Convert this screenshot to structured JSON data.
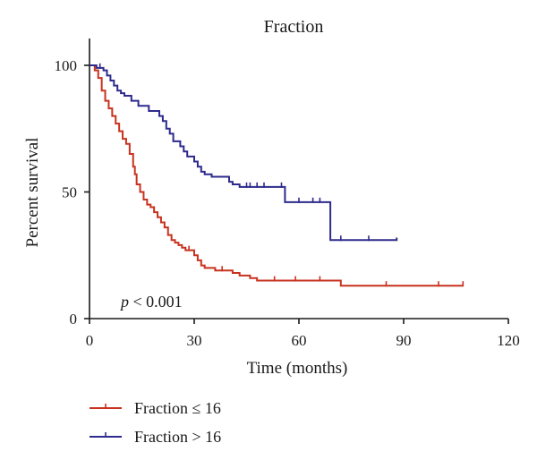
{
  "chart_data": {
    "type": "line",
    "title": "Fraction",
    "xlabel": "Time (months)",
    "ylabel": "Percent survival",
    "xlim": [
      0,
      120
    ],
    "ylim": [
      0,
      100
    ],
    "x_ticks": [
      "0",
      "30",
      "60",
      "90",
      "120"
    ],
    "y_ticks": [
      "0",
      "50",
      "100"
    ],
    "grid": false,
    "legend_position": "bottom-left",
    "annotation": {
      "p": "p",
      "rest": " < 0.001"
    },
    "series": [
      {
        "name": "Fraction ≤ 16",
        "color": "#c8321e",
        "step": true,
        "x": [
          0,
          1.5,
          2.5,
          3.5,
          4.5,
          5.5,
          6.5,
          7.5,
          8.5,
          9.5,
          10.5,
          11.5,
          12.5,
          13,
          13.5,
          14.5,
          15.5,
          16.5,
          17.5,
          18.5,
          19.5,
          20.5,
          21.5,
          22.5,
          23.5,
          24.5,
          25.5,
          26.5,
          27.5,
          28.5,
          30,
          31,
          32,
          33,
          36,
          38,
          41,
          43,
          46,
          48,
          53,
          59,
          66,
          72,
          85,
          100,
          107
        ],
        "y": [
          100,
          98,
          95,
          90,
          86,
          83,
          80,
          77,
          74,
          71,
          69,
          65,
          60,
          57,
          53,
          50,
          47,
          45,
          44,
          42,
          40,
          38,
          36,
          33,
          31,
          30,
          29,
          28,
          27,
          27,
          25,
          23,
          21,
          20,
          19,
          19,
          18,
          17,
          16,
          15,
          15,
          15,
          15,
          13,
          13,
          13,
          13
        ]
      },
      {
        "name": "Fraction > 16",
        "color": "#2e2b8c",
        "step": true,
        "x": [
          0,
          2,
          3,
          4,
          5,
          6,
          7,
          8,
          9,
          10,
          12,
          14,
          17,
          20,
          21,
          22,
          23,
          24,
          26,
          27,
          28,
          30,
          31,
          32,
          33,
          35,
          40,
          41,
          43,
          45,
          46,
          48,
          50,
          55,
          56,
          60,
          64,
          66,
          69,
          72,
          80,
          88
        ],
        "y": [
          100,
          99,
          99,
          98,
          96,
          94,
          92,
          90,
          89,
          88,
          86,
          84,
          82,
          80,
          78,
          75,
          73,
          70,
          68,
          66,
          64,
          62,
          60,
          58,
          57,
          56,
          54,
          53,
          52,
          52,
          52,
          52,
          52,
          52,
          46,
          46,
          46,
          46,
          31,
          31,
          31,
          32
        ]
      }
    ]
  }
}
